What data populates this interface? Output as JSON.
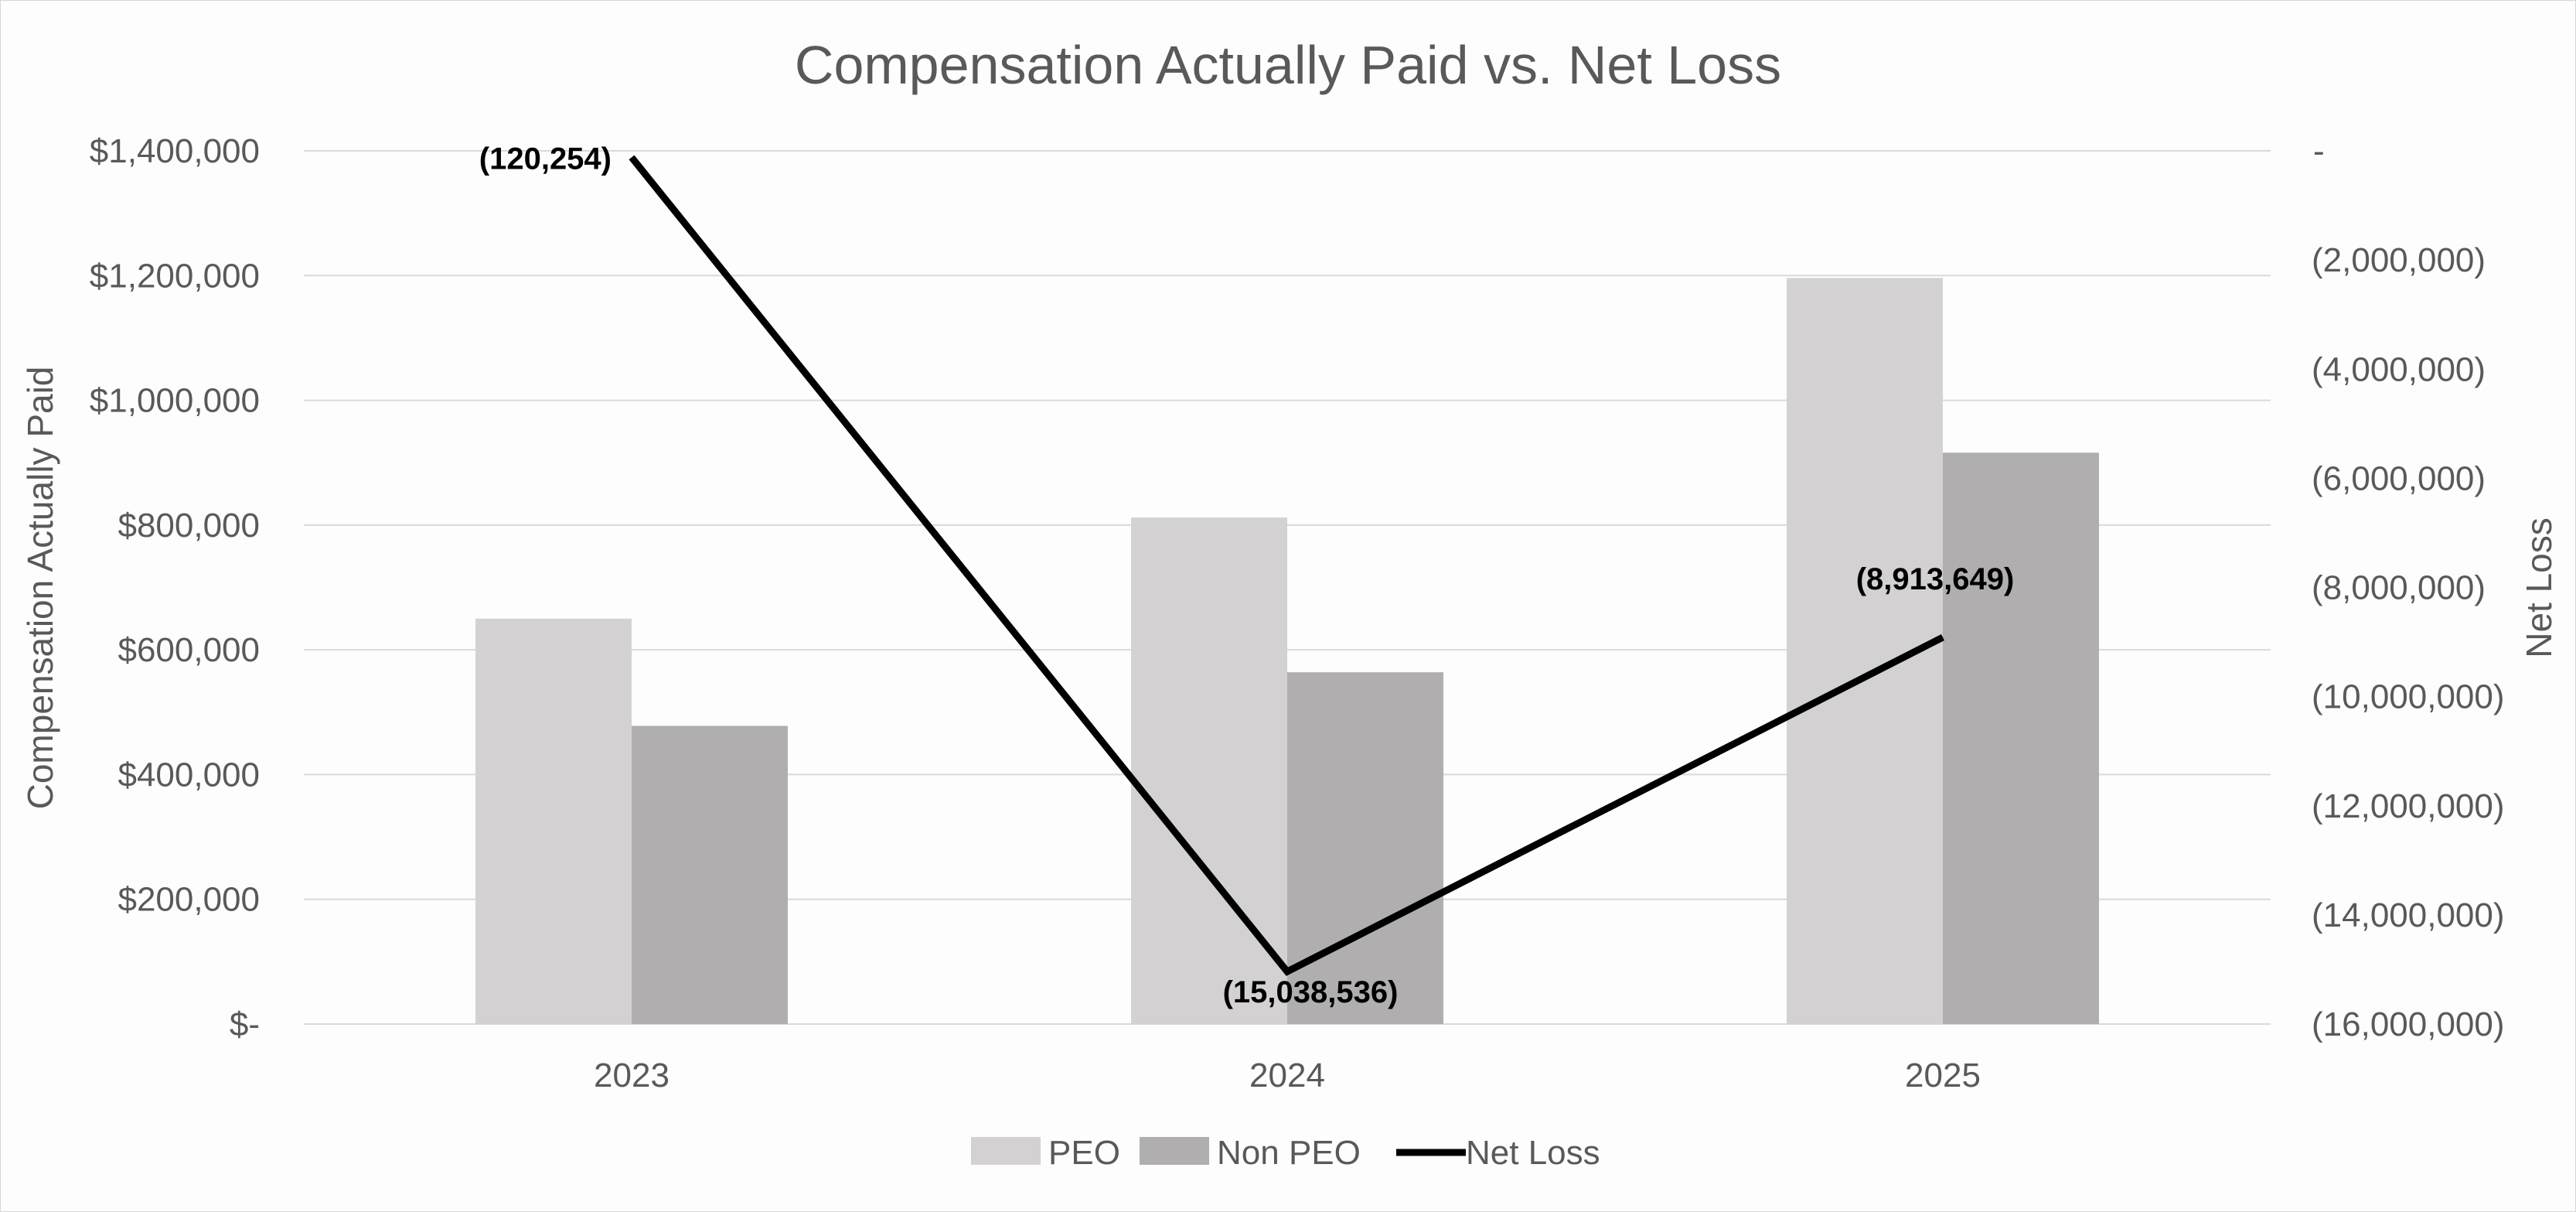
{
  "chart_data": {
    "type": "bar",
    "title": "Compensation Actually Paid vs. Net Loss",
    "categories": [
      "2023",
      "2024",
      "2025"
    ],
    "ylabel": "Compensation Actually Paid",
    "y2label": "Net Loss",
    "ylim": [
      0,
      1400000
    ],
    "y2lim": [
      -16000000,
      0
    ],
    "yticks": [
      {
        "value": 0,
        "label": "$-"
      },
      {
        "value": 200000,
        "label": "$200,000"
      },
      {
        "value": 400000,
        "label": "$400,000"
      },
      {
        "value": 600000,
        "label": "$600,000"
      },
      {
        "value": 800000,
        "label": "$800,000"
      },
      {
        "value": 1000000,
        "label": "$1,000,000"
      },
      {
        "value": 1200000,
        "label": "$1,200,000"
      },
      {
        "value": 1400000,
        "label": "$1,400,000"
      }
    ],
    "y2ticks": [
      {
        "value": 0,
        "label": "-"
      },
      {
        "value": -2000000,
        "label": "(2,000,000)"
      },
      {
        "value": -4000000,
        "label": "(4,000,000)"
      },
      {
        "value": -6000000,
        "label": "(6,000,000)"
      },
      {
        "value": -8000000,
        "label": "(8,000,000)"
      },
      {
        "value": -10000000,
        "label": "(10,000,000)"
      },
      {
        "value": -12000000,
        "label": "(12,000,000)"
      },
      {
        "value": -14000000,
        "label": "(14,000,000)"
      },
      {
        "value": -16000000,
        "label": "(16,000,000)"
      }
    ],
    "series": [
      {
        "name": "PEO",
        "type": "bar",
        "axis": "left",
        "color": "#d3d1d1",
        "values": [
          650000,
          812000,
          1196000
        ]
      },
      {
        "name": "Non PEO",
        "type": "bar",
        "axis": "left",
        "color": "#b0aeae",
        "values": [
          478000,
          564000,
          916000
        ]
      },
      {
        "name": "Net Loss",
        "type": "line",
        "axis": "right",
        "color": "#000000",
        "values": [
          -120254,
          -15038536,
          -8913649
        ],
        "labels": [
          "(120,254)",
          "(15,038,536)",
          "(8,913,649)"
        ]
      }
    ],
    "grid": true,
    "legend_position": "bottom"
  }
}
